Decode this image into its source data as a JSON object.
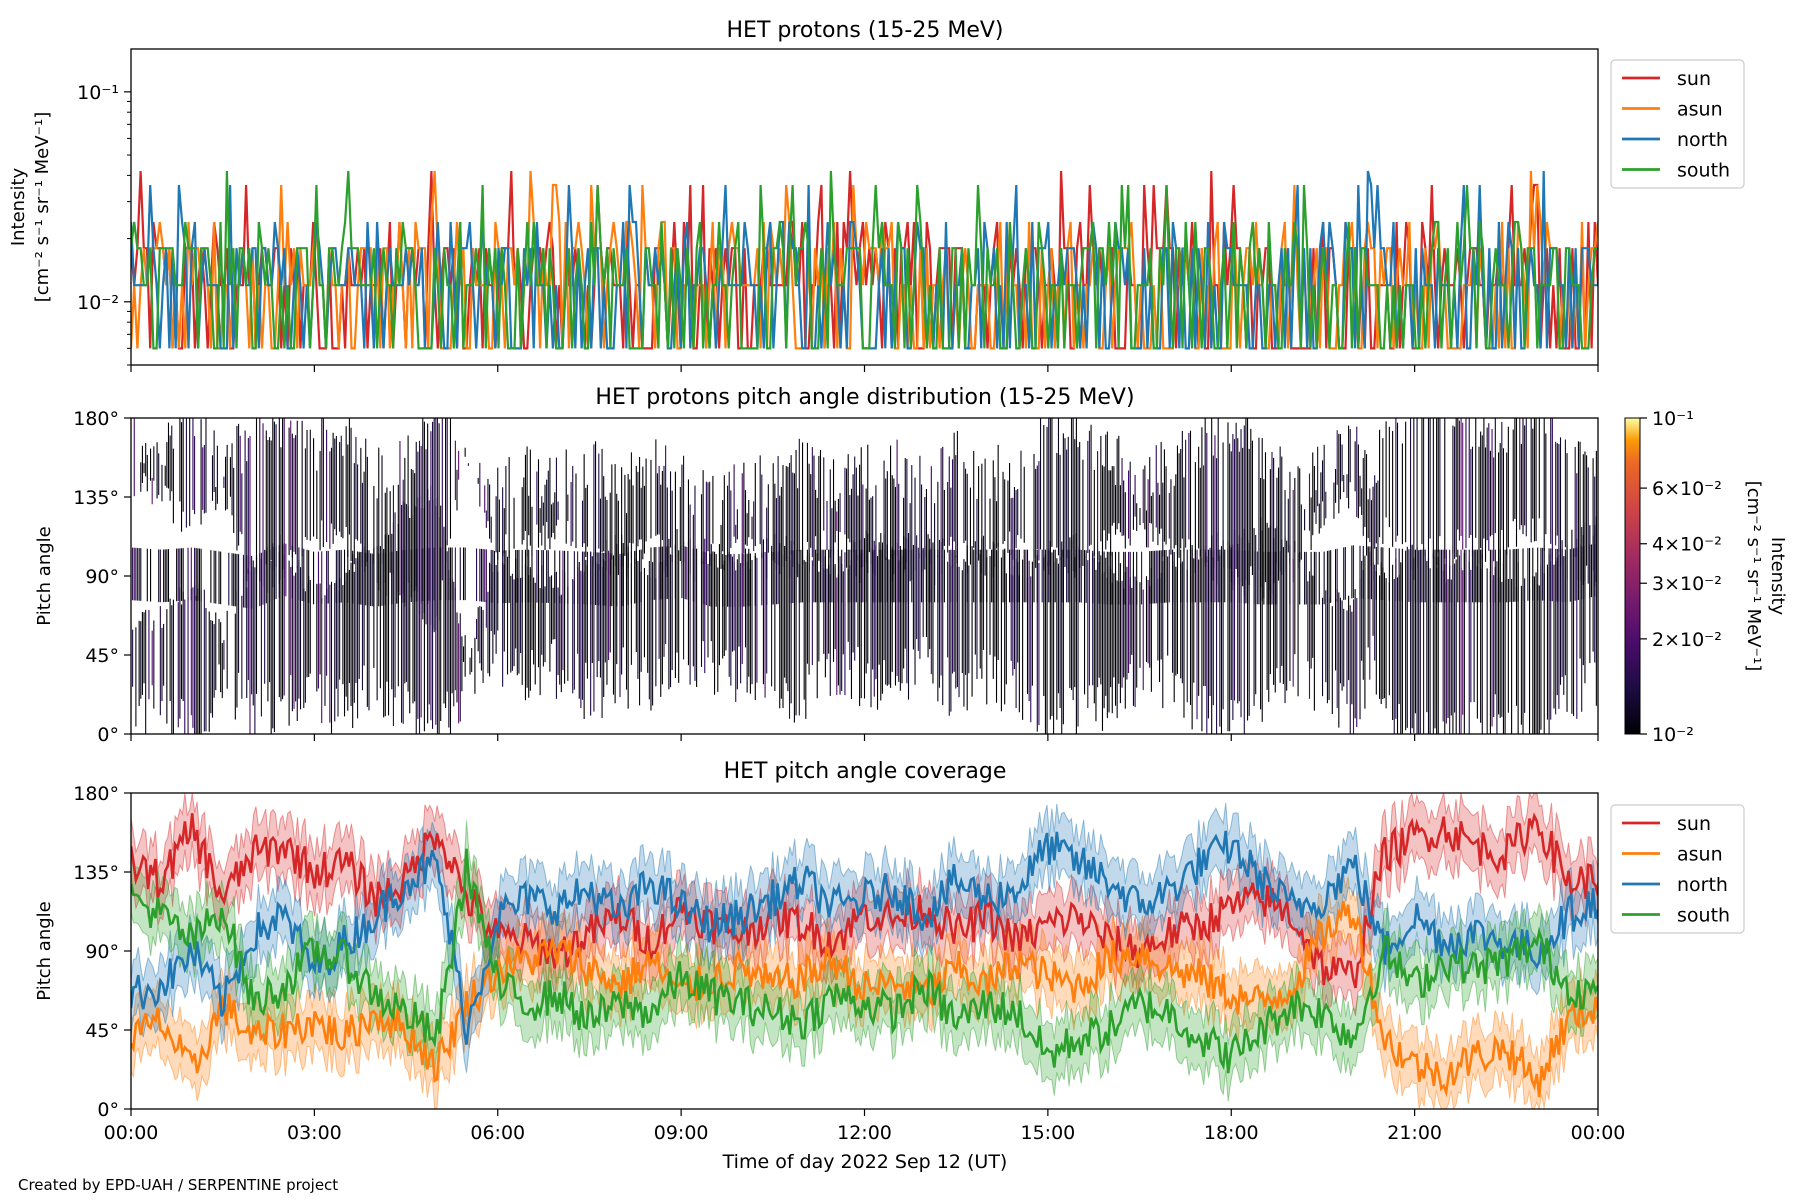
{
  "chart_data": [
    {
      "type": "line",
      "title": "HET protons (15-25 MeV)",
      "ylabel_line1": "Intensity",
      "ylabel_line2": "[cm⁻² s⁻¹ sr⁻¹ MeV⁻¹]",
      "yscale": "log",
      "ylim": [
        0.005,
        0.16
      ],
      "yticks": [
        {
          "value": 0.1,
          "label": "10⁻¹"
        },
        {
          "value": 0.01,
          "label": "10⁻²"
        }
      ],
      "legend_position": "right-outside",
      "legend": [
        {
          "name": "sun",
          "color": "#d62728"
        },
        {
          "name": "asun",
          "color": "#ff7f0e"
        },
        {
          "name": "north",
          "color": "#1f77b4"
        },
        {
          "name": "south",
          "color": "#2ca02c"
        }
      ],
      "value_levels": [
        0.006,
        0.012,
        0.018,
        0.024,
        0.036,
        0.042,
        0.048
      ],
      "note": "counting-statistics limited; most samples at 0.006-0.018, sparse spikes up to ~0.048"
    },
    {
      "type": "heatmap",
      "title": "HET protons pitch angle distribution (15-25 MeV)",
      "ylabel": "Pitch angle",
      "ylim": [
        0,
        180
      ],
      "yticks": [
        "0°",
        "45°",
        "90°",
        "135°",
        "180°"
      ],
      "colorbar": {
        "label_line1": "Intensity",
        "label_line2": "[cm⁻² s⁻¹ sr⁻¹ MeV⁻¹]",
        "scale": "log",
        "range": [
          0.01,
          0.1
        ],
        "ticks": [
          {
            "value": 0.1,
            "label": "10⁻¹"
          },
          {
            "value": 0.06,
            "label": "6×10⁻²"
          },
          {
            "value": 0.04,
            "label": "4×10⁻²"
          },
          {
            "value": 0.03,
            "label": "3×10⁻²"
          },
          {
            "value": 0.02,
            "label": "2×10⁻²"
          },
          {
            "value": 0.01,
            "label": "10⁻²"
          }
        ],
        "colormap": "inferno"
      }
    },
    {
      "type": "line",
      "title": "HET pitch angle coverage",
      "ylabel": "Pitch angle",
      "xlabel": "Time of day 2022 Sep 12 (UT)",
      "ylim": [
        0,
        180
      ],
      "yticks": [
        "0°",
        "45°",
        "90°",
        "135°",
        "180°"
      ],
      "xlim_hours": [
        0,
        24
      ],
      "xticks": [
        "00:00",
        "03:00",
        "06:00",
        "09:00",
        "12:00",
        "15:00",
        "18:00",
        "21:00",
        "00:00"
      ],
      "legend_position": "right-outside",
      "band_halfwidth_deg": 16,
      "series": [
        {
          "name": "sun",
          "color": "#d62728",
          "t": [
            0,
            0.5,
            1,
            1.5,
            2,
            2.5,
            3,
            3.5,
            4,
            4.5,
            5,
            5.5,
            6,
            6.5,
            7,
            7.5,
            8,
            8.5,
            9,
            9.5,
            10,
            10.5,
            11,
            11.5,
            12,
            12.5,
            13,
            13.5,
            14,
            14.5,
            15,
            15.5,
            16,
            16.5,
            17,
            17.5,
            18,
            18.5,
            19,
            19.5,
            20,
            20.5,
            21,
            21.5,
            22,
            22.5,
            23,
            23.5,
            24
          ],
          "values": [
            140,
            130,
            160,
            120,
            145,
            150,
            135,
            140,
            120,
            130,
            160,
            120,
            98,
            95,
            88,
            100,
            110,
            95,
            115,
            105,
            100,
            110,
            105,
            95,
            112,
            108,
            115,
            100,
            110,
            95,
            105,
            110,
            95,
            90,
            100,
            105,
            115,
            120,
            110,
            80,
            75,
            145,
            155,
            160,
            150,
            145,
            165,
            130,
            130
          ]
        },
        {
          "name": "asun",
          "color": "#ff7f0e",
          "t": [
            0,
            0.5,
            1,
            1.5,
            2,
            2.5,
            3,
            3.5,
            4,
            4.5,
            5,
            5.5,
            6,
            6.5,
            7,
            7.5,
            8,
            8.5,
            9,
            9.5,
            10,
            10.5,
            11,
            11.5,
            12,
            12.5,
            13,
            13.5,
            14,
            14.5,
            15,
            15.5,
            16,
            16.5,
            17,
            17.5,
            18,
            18.5,
            19,
            19.5,
            20,
            20.5,
            21,
            21.5,
            22,
            22.5,
            23,
            23.5,
            24
          ],
          "values": [
            40,
            50,
            20,
            60,
            40,
            45,
            50,
            40,
            55,
            45,
            25,
            60,
            80,
            85,
            90,
            80,
            70,
            85,
            65,
            75,
            80,
            70,
            75,
            85,
            68,
            72,
            65,
            80,
            70,
            85,
            75,
            70,
            85,
            90,
            80,
            75,
            65,
            60,
            70,
            100,
            115,
            40,
            25,
            20,
            30,
            35,
            15,
            50,
            60
          ]
        },
        {
          "name": "north",
          "color": "#1f77b4",
          "t": [
            0,
            0.5,
            1,
            1.5,
            2,
            2.5,
            3,
            3.5,
            4,
            4.5,
            5,
            5.5,
            6,
            6.5,
            7,
            7.5,
            8,
            8.5,
            9,
            9.5,
            10,
            10.5,
            11,
            11.5,
            12,
            12.5,
            13,
            13.5,
            14,
            14.5,
            15,
            15.5,
            16,
            16.5,
            17,
            17.5,
            18,
            18.5,
            19,
            19.5,
            20,
            20.5,
            21,
            21.5,
            22,
            22.5,
            23,
            23.5,
            24
          ],
          "values": [
            65,
            70,
            90,
            60,
            100,
            110,
            80,
            95,
            110,
            130,
            140,
            45,
            110,
            120,
            115,
            125,
            110,
            130,
            115,
            105,
            110,
            120,
            130,
            115,
            120,
            125,
            110,
            130,
            120,
            125,
            150,
            140,
            130,
            115,
            125,
            140,
            150,
            130,
            115,
            120,
            140,
            90,
            110,
            95,
            100,
            95,
            90,
            110,
            120
          ]
        },
        {
          "name": "south",
          "color": "#2ca02c",
          "t": [
            0,
            0.5,
            1,
            1.5,
            2,
            2.5,
            3,
            3.5,
            4,
            4.5,
            5,
            5.5,
            6,
            6.5,
            7,
            7.5,
            8,
            8.5,
            9,
            9.5,
            10,
            10.5,
            11,
            11.5,
            12,
            12.5,
            13,
            13.5,
            14,
            14.5,
            15,
            15.5,
            16,
            16.5,
            17,
            17.5,
            18,
            18.5,
            19,
            19.5,
            20,
            20.5,
            21,
            21.5,
            22,
            22.5,
            23,
            23.5,
            24
          ],
          "values": [
            120,
            110,
            95,
            115,
            60,
            70,
            90,
            85,
            65,
            55,
            40,
            140,
            70,
            60,
            65,
            50,
            60,
            55,
            75,
            65,
            60,
            55,
            50,
            65,
            60,
            55,
            70,
            50,
            60,
            55,
            30,
            40,
            45,
            60,
            55,
            40,
            30,
            45,
            60,
            55,
            40,
            90,
            70,
            85,
            80,
            85,
            95,
            70,
            65
          ]
        }
      ]
    }
  ],
  "footer": "Created by EPD-UAH / SERPENTINE project"
}
